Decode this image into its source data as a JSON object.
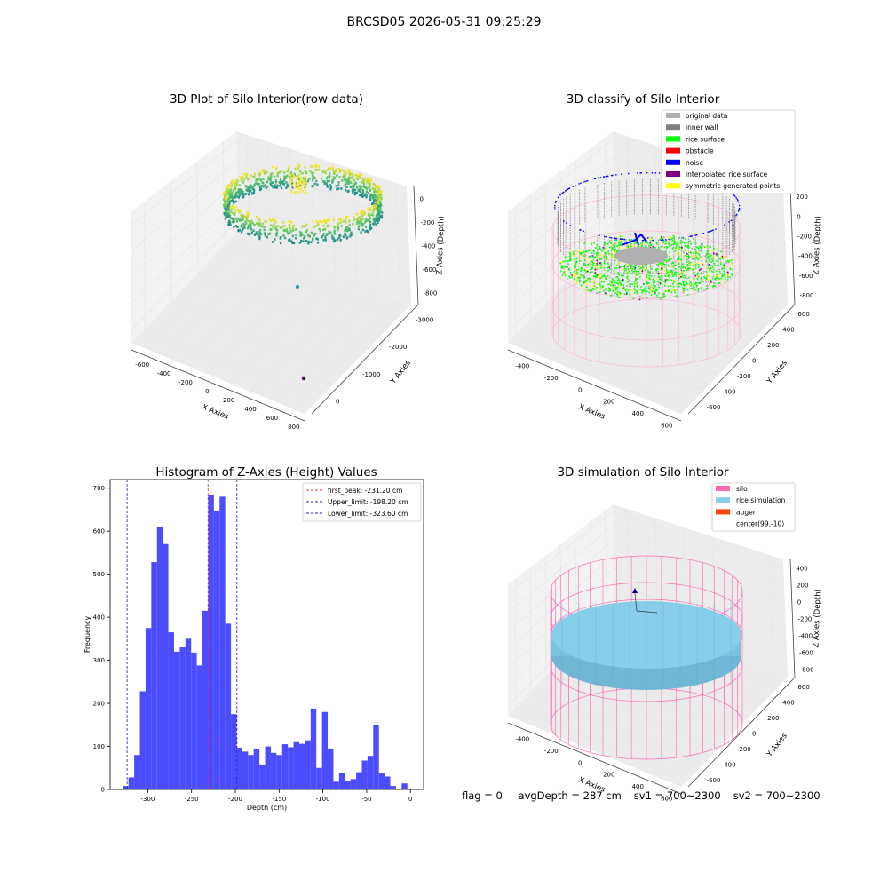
{
  "figure": {
    "suptitle": "BRCSD05 2026-05-31 09:25:29",
    "footer": {
      "flag": "flag = 0",
      "avg_depth": "avgDepth = 287 cm",
      "sv1": "sv1 = 700~2300",
      "sv2": "sv2 = 700~2300"
    }
  },
  "colors": {
    "hist_bar": "#4c4cff",
    "first_peak": "#e03030",
    "limits": "#2020c0",
    "silo_wire": "#ff69b4",
    "rice_sim": "#87ceeb",
    "original": "#b0b0b0",
    "inner_wall": "#808080",
    "rice_surface": "#00ff00",
    "obstacle": "#ff0000",
    "noise": "#0000ff",
    "interpolated": "#800080",
    "symmetric": "#ffff00",
    "auger": "#ff4500"
  },
  "chart_data": [
    {
      "type": "scatter3d",
      "title": "3D Plot of Silo Interior(row data)",
      "xlabel": "X Axies",
      "ylabel": "Y Axies",
      "zlabel": "Z Axies (Depth)",
      "x_ticks": [
        "-600",
        "-400",
        "-200",
        "0",
        "200",
        "400",
        "600",
        "800"
      ],
      "y_ticks": [
        "0",
        "-1000",
        "-2000",
        "-3000"
      ],
      "z_ticks": [
        "0",
        "-200",
        "-400",
        "-600",
        "-800"
      ],
      "xlim": [
        -650,
        850
      ],
      "ylim": [
        -3300,
        500
      ],
      "zlim": [
        -900,
        0
      ],
      "colormap": "viridis",
      "ring": {
        "center_x": 99,
        "center_y": -10,
        "radius": 650,
        "z_range": [
          -350,
          -50
        ]
      },
      "outliers": [
        {
          "x": 300,
          "y": -500,
          "z": -800,
          "color": "#3a9aa5"
        },
        {
          "x": 780,
          "y": -3100,
          "z": -200,
          "color": "#440154"
        }
      ]
    },
    {
      "type": "scatter3d",
      "title": "3D classify of Silo Interior",
      "xlabel": "X Axies",
      "ylabel": "Y Axies",
      "zlabel": "Z Axies (Depth)",
      "x_ticks": [
        "-400",
        "-200",
        "0",
        "200",
        "400",
        "600"
      ],
      "y_ticks": [
        "-600",
        "-400",
        "-200",
        "0",
        "200",
        "400",
        "600"
      ],
      "z_ticks": [
        "200",
        "0",
        "-200",
        "-400",
        "-600",
        "-800"
      ],
      "xlim": [
        -600,
        700
      ],
      "ylim": [
        -650,
        700
      ],
      "zlim": [
        -900,
        250
      ],
      "legend_position": "top-right",
      "legend": [
        {
          "label": "original data",
          "color": "#b0b0b0"
        },
        {
          "label": "inner wall",
          "color": "#808080"
        },
        {
          "label": "rice surface",
          "color": "#00ff00"
        },
        {
          "label": "obstacle",
          "color": "#ff0000"
        },
        {
          "label": "noise",
          "color": "#0000ff"
        },
        {
          "label": "interpolated rice surface",
          "color": "#800080"
        },
        {
          "label": "symmetric generated points",
          "color": "#ffff00"
        }
      ]
    },
    {
      "type": "bar",
      "title": "Histogram of Z-Axies (Height) Values",
      "xlabel": "Depth (cm)",
      "ylabel": "Frequency",
      "xlim": [
        -343,
        15
      ],
      "ylim": [
        0,
        720
      ],
      "x_ticks": [
        -300,
        -250,
        -200,
        -150,
        -100,
        -50,
        0
      ],
      "y_ticks": [
        0,
        100,
        200,
        300,
        400,
        500,
        600,
        700
      ],
      "bin_start": -328.5,
      "bin_width": 6.5,
      "values": [
        8,
        28,
        80,
        228,
        375,
        528,
        610,
        570,
        365,
        320,
        330,
        350,
        318,
        288,
        415,
        685,
        648,
        680,
        385,
        175,
        97,
        88,
        80,
        95,
        58,
        100,
        85,
        80,
        105,
        98,
        110,
        106,
        114,
        188,
        50,
        180,
        95,
        18,
        38,
        20,
        24,
        40,
        67,
        78,
        150,
        37,
        30,
        8,
        2,
        14
      ],
      "legend_position": "top-right",
      "lines": [
        {
          "label": "first_peak: -231.20 cm",
          "x": -231.2,
          "color": "#e03030"
        },
        {
          "label": "Upper_limit: -198.20 cm",
          "x": -198.2,
          "color": "#2020c0"
        },
        {
          "label": "Lower_limit: -323.60 cm",
          "x": -323.6,
          "color": "#2020c0"
        }
      ]
    },
    {
      "type": "surface3d",
      "title": "3D simulation of Silo Interior",
      "xlabel": "X Axies",
      "ylabel": "Y Axies",
      "zlabel": "Z Axies (Depth)",
      "x_ticks": [
        "-400",
        "-200",
        "0",
        "200",
        "400",
        "600"
      ],
      "y_ticks": [
        "-600",
        "-400",
        "-200",
        "0",
        "200",
        "400",
        "600"
      ],
      "z_ticks": [
        "400",
        "200",
        "0",
        "-200",
        "-400",
        "-600",
        "-800"
      ],
      "xlim": [
        -600,
        700
      ],
      "ylim": [
        -650,
        700
      ],
      "zlim": [
        -900,
        500
      ],
      "avg_depth": -287,
      "legend_position": "top-right",
      "legend": [
        {
          "label": "silo",
          "color": "#ff69b4"
        },
        {
          "label": "rice simulation",
          "color": "#87ceeb"
        },
        {
          "label": "auger",
          "color": "#ff4500"
        },
        {
          "label": "center(99,-10)",
          "color": "#ffffff"
        }
      ]
    }
  ]
}
